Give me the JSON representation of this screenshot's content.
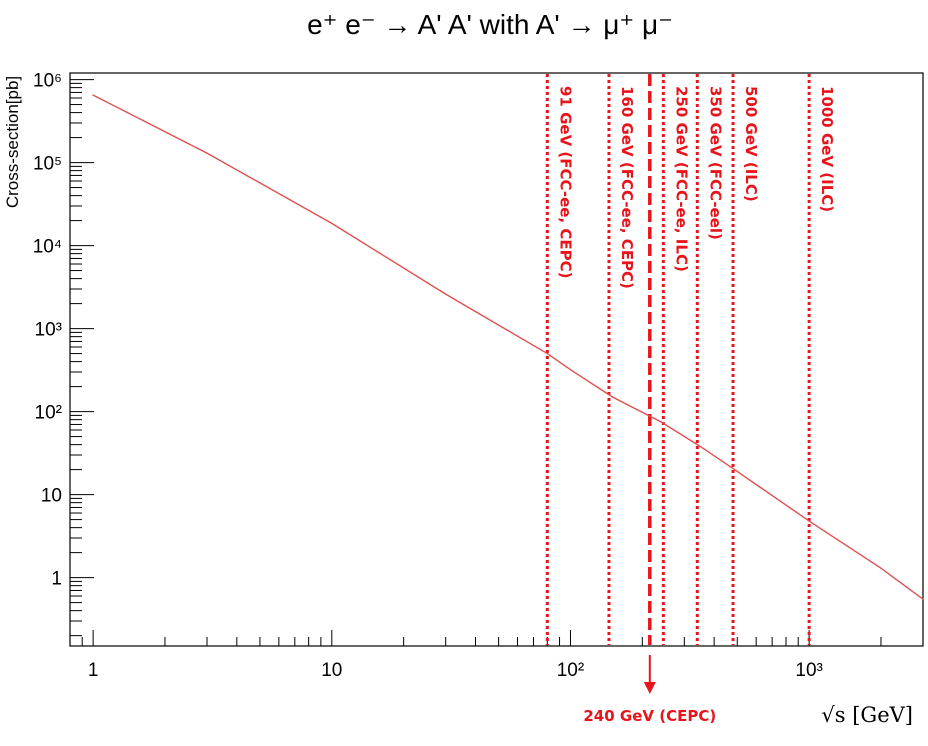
{
  "chart_data": {
    "type": "line",
    "title": "e⁺ e⁻ → A' A' with A' → μ⁺ μ⁻",
    "xlabel": "√s [GeV]",
    "ylabel": "Cross-section[pb]",
    "x_scale": "log",
    "y_scale": "log",
    "xlim": [
      0.8,
      3000
    ],
    "ylim": [
      0.15,
      1200000
    ],
    "x_ticks": [
      {
        "value": 1,
        "label": "1"
      },
      {
        "value": 10,
        "label": "10"
      },
      {
        "value": 100,
        "label": "10²"
      },
      {
        "value": 1000,
        "label": "10³"
      }
    ],
    "y_ticks": [
      {
        "value": 1,
        "label": "1"
      },
      {
        "value": 10,
        "label": "10"
      },
      {
        "value": 100,
        "label": "10²"
      },
      {
        "value": 1000,
        "label": "10³"
      },
      {
        "value": 10000,
        "label": "10⁴"
      },
      {
        "value": 100000,
        "label": "10⁵"
      },
      {
        "value": 1000000,
        "label": "10⁶"
      }
    ],
    "grid": false,
    "series": [
      {
        "color": "#e05050",
        "x": [
          1,
          3,
          10,
          30,
          80,
          100,
          150,
          240,
          350,
          500,
          1000,
          2000,
          3000
        ],
        "y": [
          650000,
          130000,
          18500,
          2600,
          500,
          320,
          150,
          75,
          38,
          19,
          4.8,
          1.3,
          0.55
        ]
      }
    ],
    "vertical_lines": [
      {
        "x": 80,
        "label": "91 GeV (FCC-ee, CEPC)",
        "style": "dotted"
      },
      {
        "x": 145,
        "label": "160 GeV (FCC-ee, CEPC)",
        "style": "dotted"
      },
      {
        "x": 215,
        "label": "",
        "style": "dashed"
      },
      {
        "x": 245,
        "label": "250 GeV (FCC-ee, ILC)",
        "style": "dotted"
      },
      {
        "x": 340,
        "label": "350 GeV (FCC-eel)",
        "style": "dotted"
      },
      {
        "x": 480,
        "label": "500 GeV (ILC)",
        "style": "dotted"
      },
      {
        "x": 1000,
        "label": "1000 GeV (ILC)",
        "style": "dotted"
      }
    ],
    "annotation": {
      "x": 215,
      "label": "240 GeV (CEPC)"
    },
    "line_color": "#e8141c"
  }
}
